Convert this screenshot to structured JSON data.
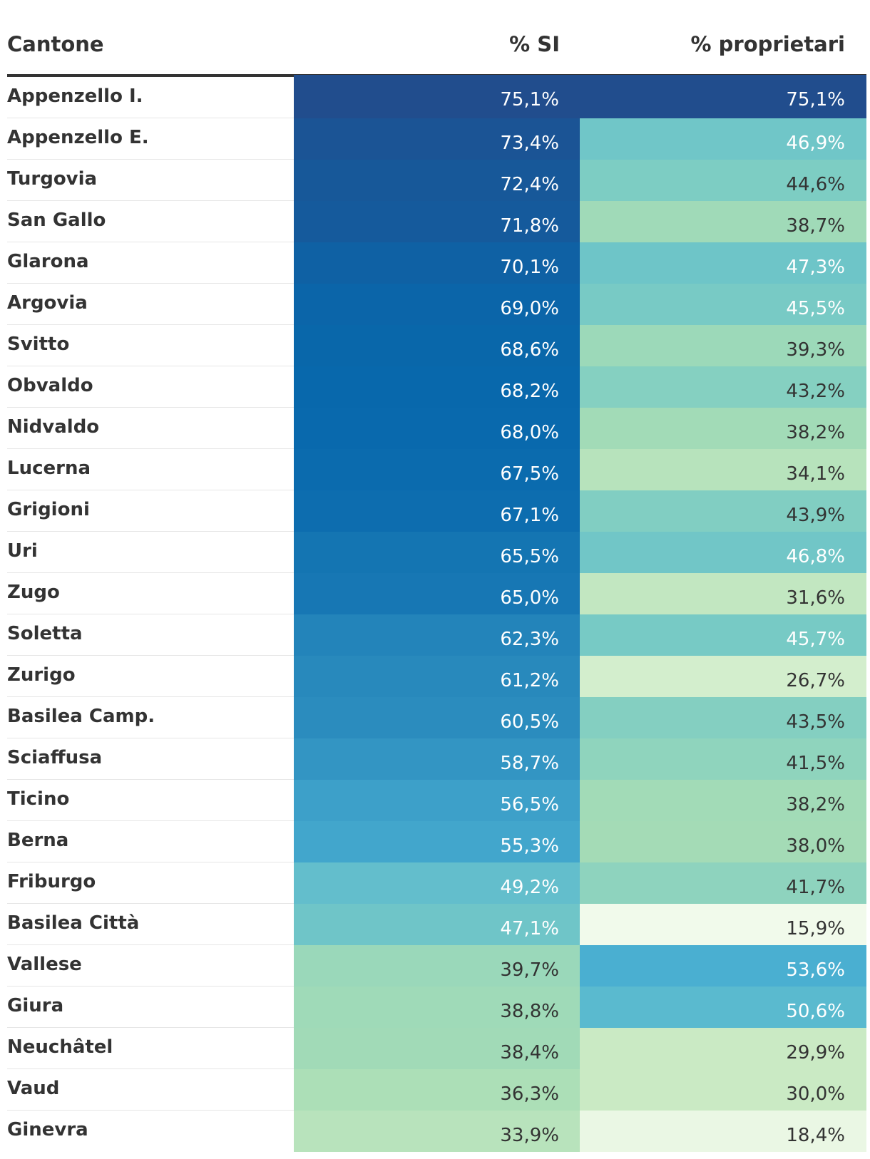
{
  "chart_data": {
    "type": "table",
    "columns": [
      "Cantone",
      "% SI",
      "% proprietari"
    ],
    "rows": [
      {
        "cantone": "Appenzello I.",
        "si": "75,1%",
        "prop": "75,1%",
        "si_v": 75.1,
        "prop_v": 75.1
      },
      {
        "cantone": "Appenzello E.",
        "si": "73,4%",
        "prop": "46,9%",
        "si_v": 73.4,
        "prop_v": 46.9
      },
      {
        "cantone": "Turgovia",
        "si": "72,4%",
        "prop": "44,6%",
        "si_v": 72.4,
        "prop_v": 44.6
      },
      {
        "cantone": "San Gallo",
        "si": "71,8%",
        "prop": "38,7%",
        "si_v": 71.8,
        "prop_v": 38.7
      },
      {
        "cantone": "Glarona",
        "si": "70,1%",
        "prop": "47,3%",
        "si_v": 70.1,
        "prop_v": 47.3
      },
      {
        "cantone": "Argovia",
        "si": "69,0%",
        "prop": "45,5%",
        "si_v": 69.0,
        "prop_v": 45.5
      },
      {
        "cantone": "Svitto",
        "si": "68,6%",
        "prop": "39,3%",
        "si_v": 68.6,
        "prop_v": 39.3
      },
      {
        "cantone": "Obvaldo",
        "si": "68,2%",
        "prop": "43,2%",
        "si_v": 68.2,
        "prop_v": 43.2
      },
      {
        "cantone": "Nidvaldo",
        "si": "68,0%",
        "prop": "38,2%",
        "si_v": 68.0,
        "prop_v": 38.2
      },
      {
        "cantone": "Lucerna",
        "si": "67,5%",
        "prop": "34,1%",
        "si_v": 67.5,
        "prop_v": 34.1
      },
      {
        "cantone": "Grigioni",
        "si": "67,1%",
        "prop": "43,9%",
        "si_v": 67.1,
        "prop_v": 43.9
      },
      {
        "cantone": "Uri",
        "si": "65,5%",
        "prop": "46,8%",
        "si_v": 65.5,
        "prop_v": 46.8
      },
      {
        "cantone": "Zugo",
        "si": "65,0%",
        "prop": "31,6%",
        "si_v": 65.0,
        "prop_v": 31.6
      },
      {
        "cantone": "Soletta",
        "si": "62,3%",
        "prop": "45,7%",
        "si_v": 62.3,
        "prop_v": 45.7
      },
      {
        "cantone": "Zurigo",
        "si": "61,2%",
        "prop": "26,7%",
        "si_v": 61.2,
        "prop_v": 26.7
      },
      {
        "cantone": "Basilea Camp.",
        "si": "60,5%",
        "prop": "43,5%",
        "si_v": 60.5,
        "prop_v": 43.5
      },
      {
        "cantone": "Sciaffusa",
        "si": "58,7%",
        "prop": "41,5%",
        "si_v": 58.7,
        "prop_v": 41.5
      },
      {
        "cantone": "Ticino",
        "si": "56,5%",
        "prop": "38,2%",
        "si_v": 56.5,
        "prop_v": 38.2
      },
      {
        "cantone": "Berna",
        "si": "55,3%",
        "prop": "38,0%",
        "si_v": 55.3,
        "prop_v": 38.0
      },
      {
        "cantone": "Friburgo",
        "si": "49,2%",
        "prop": "41,7%",
        "si_v": 49.2,
        "prop_v": 41.7
      },
      {
        "cantone": "Basilea Città",
        "si": "47,1%",
        "prop": "15,9%",
        "si_v": 47.1,
        "prop_v": 15.9
      },
      {
        "cantone": "Vallese",
        "si": "39,7%",
        "prop": "53,6%",
        "si_v": 39.7,
        "prop_v": 53.6
      },
      {
        "cantone": "Giura",
        "si": "38,8%",
        "prop": "50,6%",
        "si_v": 38.8,
        "prop_v": 50.6
      },
      {
        "cantone": "Neuchâtel",
        "si": "38,4%",
        "prop": "29,9%",
        "si_v": 38.4,
        "prop_v": 29.9
      },
      {
        "cantone": "Vaud",
        "si": "36,3%",
        "prop": "30,0%",
        "si_v": 36.3,
        "prop_v": 30.0
      },
      {
        "cantone": "Ginevra",
        "si": "33,9%",
        "prop": "18,4%",
        "si_v": 33.9,
        "prop_v": 18.4
      }
    ]
  },
  "colors": {
    "dark_text": "#333333",
    "light_text": "#ffffff",
    "scale": [
      "#f7fcf0",
      "#e0f3db",
      "#ccebc5",
      "#a8ddb5",
      "#7bccc4",
      "#4eb3d3",
      "#2b8cbe",
      "#0868ac",
      "#244a89"
    ]
  }
}
